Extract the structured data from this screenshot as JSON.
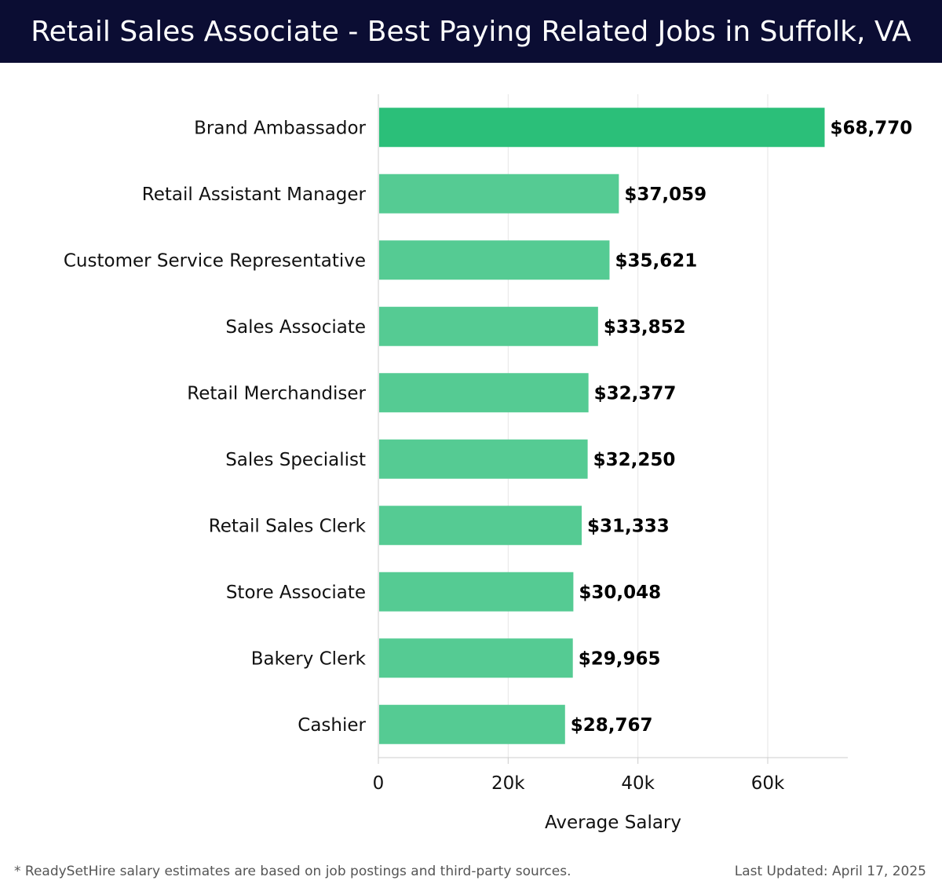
{
  "header": {
    "title": "Retail Sales Associate - Best Paying Related Jobs in Suffolk, VA"
  },
  "chart_data": {
    "type": "bar",
    "orientation": "horizontal",
    "title": "Retail Sales Associate - Best Paying Related Jobs in Suffolk, VA",
    "xlabel": "Average Salary",
    "ylabel": "",
    "categories": [
      "Brand Ambassador",
      "Retail Assistant Manager",
      "Customer Service Representative",
      "Sales Associate",
      "Retail Merchandiser",
      "Sales Specialist",
      "Retail Sales Clerk",
      "Store Associate",
      "Bakery Clerk",
      "Cashier"
    ],
    "values": [
      68770,
      37059,
      35621,
      33852,
      32377,
      32250,
      31333,
      30048,
      29965,
      28767
    ],
    "value_labels": [
      "$68,770",
      "$37,059",
      "$35,621",
      "$33,852",
      "$32,377",
      "$32,250",
      "$31,333",
      "$30,048",
      "$29,965",
      "$28,767"
    ],
    "x_ticks": [
      0,
      20000,
      40000,
      60000
    ],
    "x_tick_labels": [
      "0",
      "20k",
      "40k",
      "60k"
    ],
    "xlim": [
      0,
      72000
    ],
    "grid": "vertical",
    "colors": {
      "highlight": "#2bbf79",
      "bar": "#55cb93",
      "grid": "#e6e6e6",
      "axis": "#cccccc"
    }
  },
  "footer": {
    "note": "* ReadySetHire salary estimates are based on job postings and third-party sources.",
    "updated": "Last Updated: April 17, 2025"
  }
}
